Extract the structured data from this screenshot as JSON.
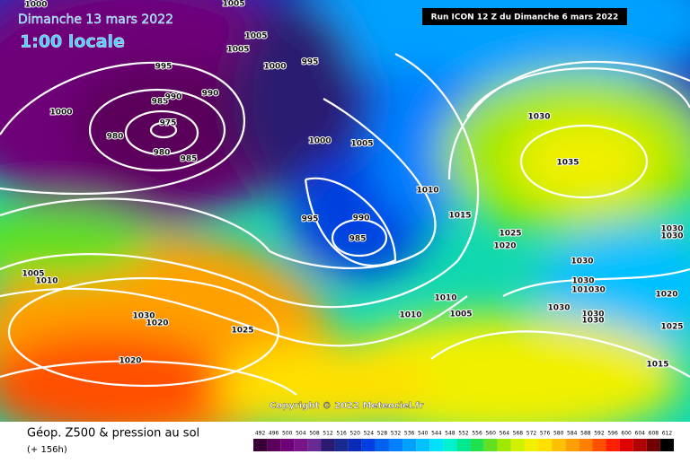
{
  "header": {
    "date": "Dimanche 13 mars 2022",
    "time": "1:00 locale",
    "run": "Run ICON 12 Z du Dimanche 6 mars 2022"
  },
  "copyright": "Copyright © 2022 Meteociel.fr",
  "footer": {
    "title": "Géop. Z500 & pression au sol",
    "lead": "(+ 156h)"
  },
  "isobar_labels": [
    "1000",
    "1005",
    "1005",
    "1005",
    "995",
    "1000",
    "995",
    "990",
    "985",
    "990",
    "1000",
    "975",
    "980",
    "980",
    "985",
    "1000",
    "1005",
    "1030",
    "1035",
    "1010",
    "995",
    "990",
    "1015",
    "985",
    "1025",
    "1020",
    "1030",
    "1030",
    "1005",
    "1010",
    "1030",
    "1030",
    "101030",
    "1020",
    "1010",
    "1005",
    "1010",
    "1030",
    "1030",
    "1030",
    "1030",
    "1020",
    "1025",
    "1025",
    "1020",
    "1015"
  ],
  "scale": {
    "ticks": [
      492,
      496,
      500,
      504,
      508,
      512,
      516,
      520,
      524,
      528,
      532,
      536,
      540,
      544,
      548,
      552,
      556,
      560,
      564,
      568,
      572,
      576,
      580,
      584,
      588,
      592,
      596,
      600,
      604,
      608,
      612
    ],
    "colors": [
      "#3a0035",
      "#5a005a",
      "#6e0078",
      "#7a1288",
      "#6a2a96",
      "#2a1a70",
      "#1a2a90",
      "#0a2ab8",
      "#0040e0",
      "#0060f0",
      "#0080ff",
      "#00a0ff",
      "#00c0ff",
      "#00e0ff",
      "#00f0d0",
      "#00e890",
      "#20e050",
      "#60e020",
      "#a0e800",
      "#d0f000",
      "#f0f000",
      "#ffe000",
      "#ffc000",
      "#ffa000",
      "#ff8000",
      "#ff5000",
      "#ff2000",
      "#e00000",
      "#b00000",
      "#700000",
      "#000000"
    ]
  }
}
